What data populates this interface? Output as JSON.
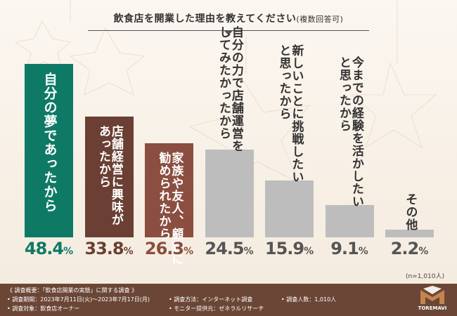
{
  "chart_data": {
    "type": "bar",
    "title": "飲食店を開業した理由を教えてください",
    "title_note": "(複数回答可)",
    "categories": [
      "自分の夢であったから",
      "店舗経営に興味があったから",
      "家族や友人、顧客に勧められたから",
      "自分の力で店舗運営をしてみたかったから",
      "新しいことに挑戦したいと思ったから",
      "今までの経験を活かしたいと思ったから",
      "その他"
    ],
    "label_lines": [
      [
        "自分の夢であったから"
      ],
      [
        "店舗経営に興味が",
        "あったから"
      ],
      [
        "家族や友人、顧客に",
        "勧められたから"
      ],
      [
        "自分の力で店舗運営を",
        "してみたかったから"
      ],
      [
        "新しいことに挑戦したい",
        "と思ったから"
      ],
      [
        "今までの経験を活かしたい",
        "と思ったから"
      ],
      [
        "その他"
      ]
    ],
    "values": [
      48.4,
      33.8,
      26.3,
      24.5,
      15.9,
      9.1,
      2.2
    ],
    "unit": "%",
    "ylim": [
      0,
      50
    ],
    "colors": [
      "#0e7a66",
      "#6b3f33",
      "#8b4e40",
      "#bdbdbd",
      "#bdbdbd",
      "#bdbdbd",
      "#bdbdbd"
    ],
    "value_colors": [
      "#0e7a66",
      "#6b3f33",
      "#8b4e40",
      "#555555",
      "#555555",
      "#555555",
      "#555555"
    ],
    "label_colors": [
      "#ffffff",
      "#ffffff",
      "#ffffff",
      "#333333",
      "#333333",
      "#333333",
      "#333333"
    ],
    "grid": false,
    "legend": "none",
    "sample_size": "(n=1,010人)"
  },
  "footer": {
    "overview": "《 調査概要：「飲食店開業の実態」に関する調査 》",
    "period": "• 調査期間：2023年7月11日(火)〜2023年7月17日(月)",
    "target": "• 調査対象：飲食店オーナー",
    "method": "• 調査方法：インターネット調査",
    "provider": "• モニター提供元：ゼネラルリサーチ",
    "respondents": "• 調査人数：1,010人",
    "logo_text": "TOREMAVI"
  }
}
